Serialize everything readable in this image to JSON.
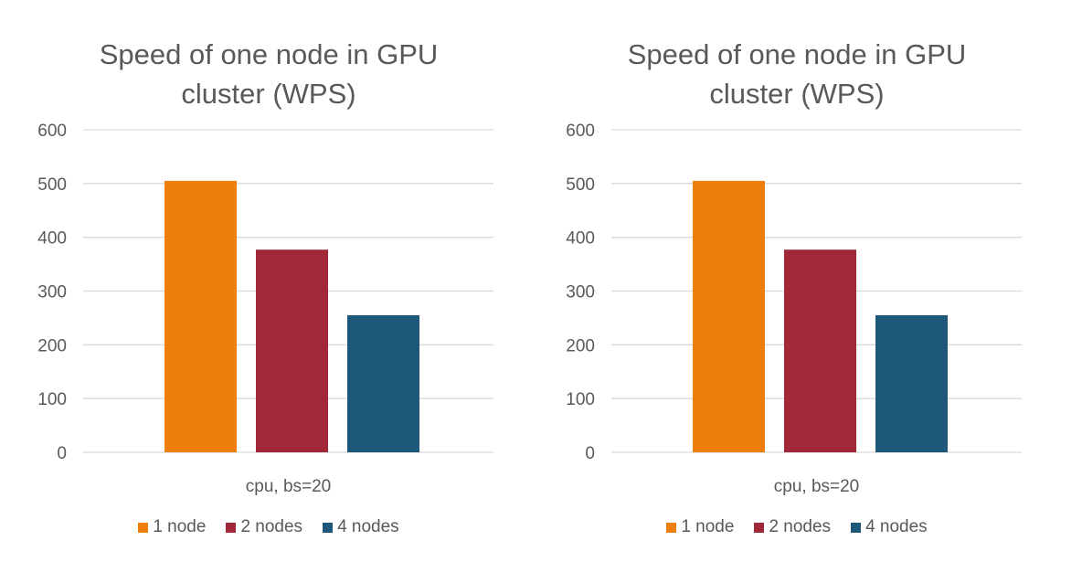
{
  "chart_data": [
    {
      "type": "bar",
      "title_lines": [
        "Speed of one node in GPU",
        "cluster (WPS)"
      ],
      "categories": [
        "cpu, bs=20"
      ],
      "series": [
        {
          "name": "1 node",
          "values": [
            505
          ],
          "color": "#EE7F0A"
        },
        {
          "name": "2 nodes",
          "values": [
            377
          ],
          "color": "#A02838"
        },
        {
          "name": "4 nodes",
          "values": [
            255
          ],
          "color": "#1D587A"
        }
      ],
      "yticks": [
        "0",
        "100",
        "200",
        "300",
        "400",
        "500",
        "600"
      ],
      "ylim": [
        0,
        600
      ],
      "grid": true,
      "legend_position": "bottom"
    },
    {
      "type": "bar",
      "title_lines": [
        "Speed of one node in GPU",
        "cluster (WPS)"
      ],
      "categories": [
        "cpu, bs=20"
      ],
      "series": [
        {
          "name": "1 node",
          "values": [
            505
          ],
          "color": "#EE7F0A"
        },
        {
          "name": "2 nodes",
          "values": [
            377
          ],
          "color": "#A02838"
        },
        {
          "name": "4 nodes",
          "values": [
            255
          ],
          "color": "#1D587A"
        }
      ],
      "yticks": [
        "0",
        "100",
        "200",
        "300",
        "400",
        "500",
        "600"
      ],
      "ylim": [
        0,
        600
      ],
      "grid": true,
      "legend_position": "bottom"
    }
  ]
}
